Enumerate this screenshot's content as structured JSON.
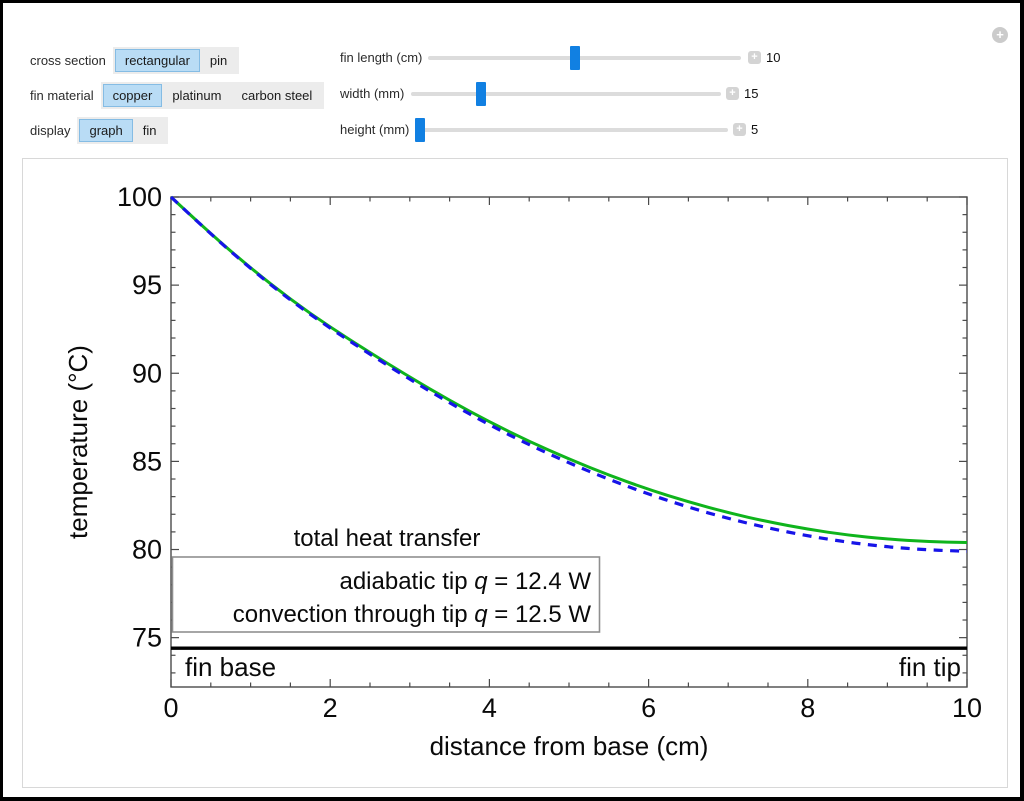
{
  "window": {
    "expand_icon": "+"
  },
  "icons": {
    "increment": "+"
  },
  "controls": {
    "cross_section": {
      "label": "cross section",
      "options": [
        "rectangular",
        "pin"
      ],
      "selected": "rectangular"
    },
    "fin_material": {
      "label": "fin material",
      "options": [
        "copper",
        "platinum",
        "carbon steel"
      ],
      "selected": "copper"
    },
    "display": {
      "label": "display",
      "options": [
        "graph",
        "fin"
      ],
      "selected": "graph"
    }
  },
  "sliders": [
    {
      "label": "fin length (cm)",
      "value": "10",
      "thumb_pct": 47
    },
    {
      "label": "width (mm)",
      "value": "15",
      "thumb_pct": 22.5
    },
    {
      "label": "height (mm)",
      "value": "5",
      "thumb_pct": 1.5
    }
  ],
  "chart_data": {
    "type": "line",
    "xlabel": "distance from base (cm)",
    "ylabel": "temperature (°C)",
    "xlim": [
      0,
      10
    ],
    "ylim": [
      72.2,
      100
    ],
    "xticks": [
      0,
      2,
      4,
      6,
      8,
      10
    ],
    "yticks": [
      75,
      80,
      85,
      90,
      95,
      100
    ],
    "x_minor_step": 0.5,
    "y_minor_step": 1,
    "grid": false,
    "frame": true,
    "baseline": {
      "value": 74.4,
      "color": "#000000"
    },
    "annotations": {
      "left": "fin base",
      "right": "fin tip"
    },
    "legend": {
      "title": "total heat transfer",
      "position": "lower-left",
      "entries": [
        {
          "prefix": "adiabatic tip ",
          "symbol": "q",
          "suffix": " = 12.4 W",
          "color": "#0fb41c"
        },
        {
          "prefix": "convection through tip ",
          "symbol": "q",
          "suffix": " = 12.5 W",
          "color": "#1714e8"
        }
      ]
    },
    "series": [
      {
        "name": "adiabatic tip",
        "style": "solid",
        "color": "#0fb41c",
        "x": [
          0,
          0.5,
          1,
          1.5,
          2,
          2.5,
          3,
          3.5,
          4,
          4.5,
          5,
          5.5,
          6,
          6.5,
          7,
          7.5,
          8,
          8.5,
          9,
          9.5,
          10
        ],
        "y": [
          100,
          97.9,
          95.97,
          94.19,
          92.62,
          91.17,
          89.78,
          88.46,
          87.24,
          86.13,
          85.13,
          84.22,
          83.41,
          82.7,
          82.09,
          81.57,
          81.15,
          80.82,
          80.59,
          80.45,
          80.4
        ]
      },
      {
        "name": "convection through tip",
        "style": "dashed",
        "color": "#1714e8",
        "x": [
          0,
          0.5,
          1,
          1.5,
          2,
          2.5,
          3,
          3.5,
          4,
          4.5,
          5,
          5.5,
          6,
          6.5,
          7,
          7.5,
          8,
          8.5,
          9,
          9.5,
          10
        ],
        "y": [
          100,
          97.89,
          95.94,
          94.14,
          92.55,
          91.08,
          89.66,
          88.32,
          87.07,
          85.94,
          84.91,
          83.98,
          83.14,
          82.4,
          81.76,
          81.22,
          80.77,
          80.41,
          80.15,
          79.98,
          79.9
        ]
      }
    ]
  }
}
